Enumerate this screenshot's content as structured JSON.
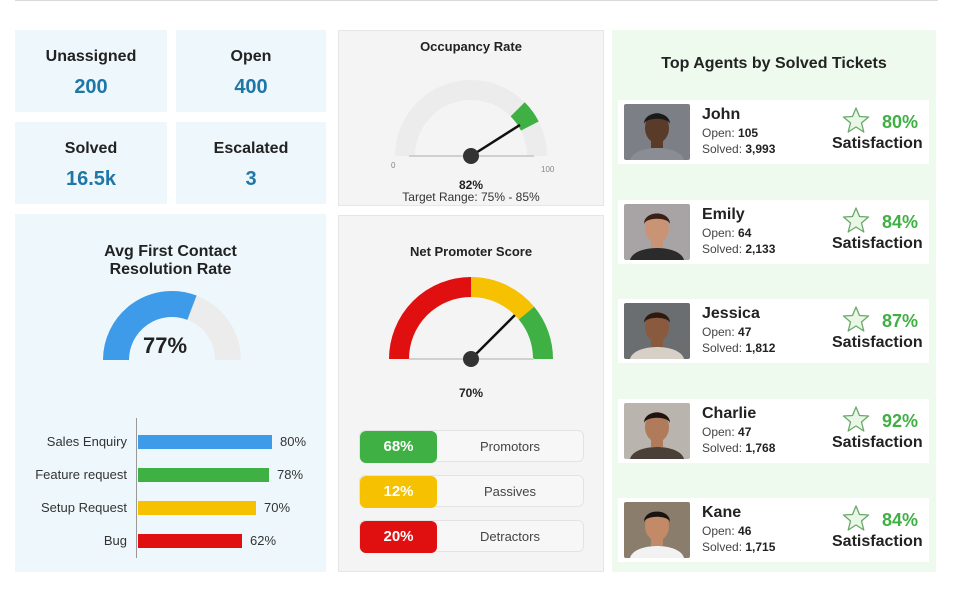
{
  "kpis": [
    {
      "label": "Unassigned",
      "value": "200"
    },
    {
      "label": "Open",
      "value": "400"
    },
    {
      "label": "Solved",
      "value": "16.5k"
    },
    {
      "label": "Escalated",
      "value": "3"
    }
  ],
  "occupancy": {
    "title": "Occupancy Rate",
    "value": "82%",
    "value_fraction": 0.82,
    "target": "Target Range: 75% - 85%",
    "min_label": "0",
    "max_label": "100",
    "target_band": [
      0.75,
      0.85
    ],
    "colors": {
      "track": "#ececec",
      "band": "#3fb043",
      "post": "#dddddd"
    }
  },
  "fcr": {
    "title_line1": "Avg First Contact",
    "title_line2": "Resolution Rate",
    "value": "77%",
    "value_fraction": 0.77,
    "colors": {
      "fill": "#3d9be9",
      "track": "#ececec"
    }
  },
  "categories": {
    "chart_data": {
      "type": "bar",
      "orientation": "horizontal",
      "categories": [
        "Sales Enquiry",
        "Feature request",
        "Setup Request",
        "Bug"
      ],
      "values": [
        80,
        78,
        70,
        62
      ],
      "labels": [
        "80%",
        "78%",
        "70%",
        "62%"
      ],
      "colors": [
        "#3d9be9",
        "#3fb043",
        "#f5c100",
        "#e01010"
      ]
    }
  },
  "nps": {
    "title": "Net Promoter Score",
    "value": "70%",
    "value_fraction": 0.7,
    "rows": [
      {
        "pct": "68%",
        "name": "Promotors",
        "color": "#3fb043"
      },
      {
        "pct": "12%",
        "name": "Passives",
        "color": "#f5c100"
      },
      {
        "pct": "20%",
        "name": "Detractors",
        "color": "#e01010"
      }
    ],
    "arc_colors": [
      "#e01010",
      "#f5c100",
      "#3fb043"
    ]
  },
  "agents": {
    "title": "Top Agents by Solved Tickets",
    "open_label": "Open:",
    "solved_label": "Solved:",
    "satisfaction_label": "Satisfaction",
    "list": [
      {
        "name": "John",
        "open": "105",
        "solved": "3,993",
        "pct": "80%",
        "skin": "#5a3a28",
        "hair": "#1a1a1a",
        "bg": "#7c7f86",
        "shirt": "#8a8d93"
      },
      {
        "name": "Emily",
        "open": "64",
        "solved": "2,133",
        "pct": "84%",
        "skin": "#c99476",
        "hair": "#3b1e14",
        "bg": "#a8a4a6",
        "shirt": "#2b2b2b"
      },
      {
        "name": "Jessica",
        "open": "47",
        "solved": "1,812",
        "pct": "87%",
        "skin": "#8a5a3e",
        "hair": "#2a1a10",
        "bg": "#6b6e70",
        "shirt": "#d7d0c6"
      },
      {
        "name": "Charlie",
        "open": "47",
        "solved": "1,768",
        "pct": "92%",
        "skin": "#b07b5a",
        "hair": "#1c1410",
        "bg": "#b9b5ae",
        "shirt": "#4b4038"
      },
      {
        "name": "Kane",
        "open": "46",
        "solved": "1,715",
        "pct": "84%",
        "skin": "#c28a66",
        "hair": "#1a1410",
        "bg": "#8b7d6b",
        "shirt": "#f2f2f2"
      }
    ]
  }
}
